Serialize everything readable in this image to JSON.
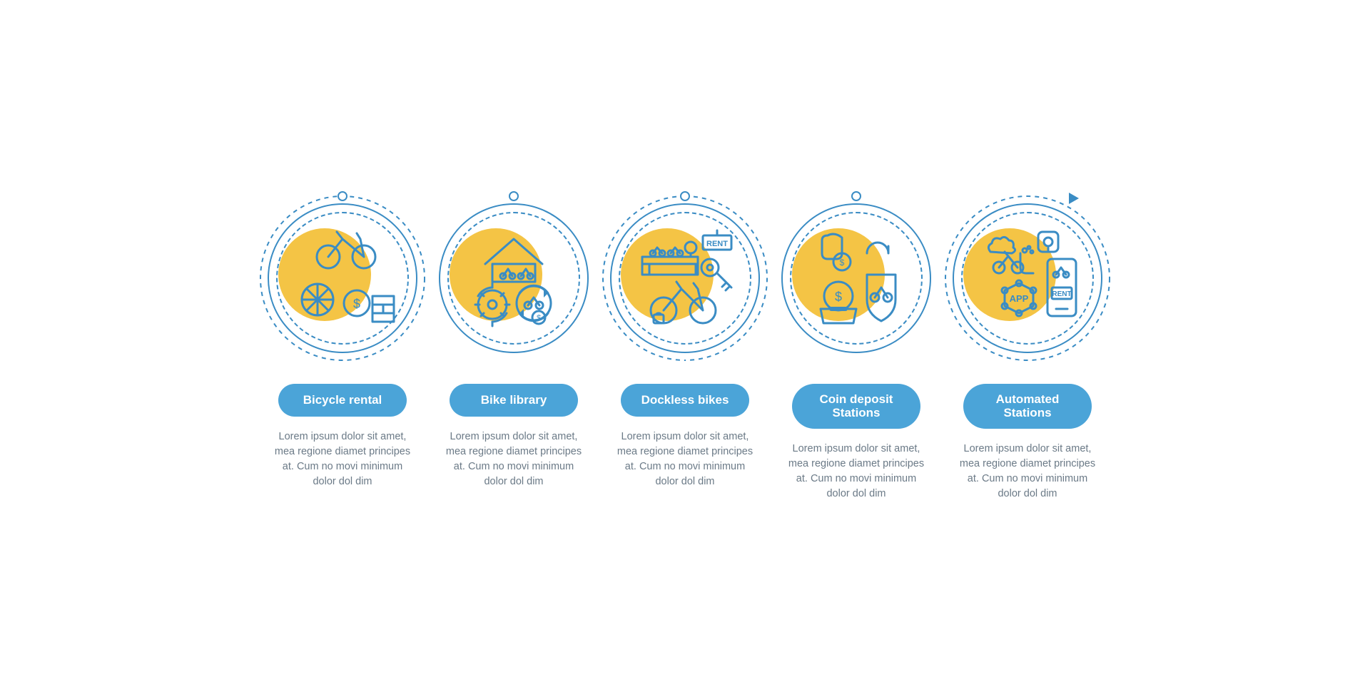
{
  "colors": {
    "stroke": "#3a8cc4",
    "pill_bg": "#4ba4d8",
    "pill_text": "#ffffff",
    "accent": "#f4c445",
    "desc_text": "#6b7a87",
    "background": "#ffffff"
  },
  "style": {
    "item_width": 240,
    "outer_solid_diameter": 210,
    "outer_dashed_diameter": 230,
    "inner_dashed_diameter": 186,
    "accent_blob_diameter": 130,
    "desc_fontsize": 14.5,
    "pill_fontsize": 17,
    "pill_radius": 999,
    "stroke_width": 2.5,
    "dash_pattern": "6 6"
  },
  "shared_desc": "Lorem ipsum dolor sit amet, mea regione diamet principes at. Cum no movi minimum dolor dol dim",
  "items": [
    {
      "title": "Bicycle rental",
      "icon": "bicycle-rental",
      "outer_style": "dashed-top",
      "desc_key": "shared_desc"
    },
    {
      "title": "Bike library",
      "icon": "bike-library",
      "outer_style": "solid",
      "desc_key": "shared_desc"
    },
    {
      "title": "Dockless bikes",
      "icon": "dockless-bikes",
      "outer_style": "dashed-bottom",
      "desc_key": "shared_desc"
    },
    {
      "title": "Coin deposit\nStations",
      "icon": "coin-deposit",
      "outer_style": "solid",
      "desc_key": "shared_desc"
    },
    {
      "title": "Automated\nStations",
      "icon": "automated-stations",
      "outer_style": "dashed-arrow",
      "desc_key": "shared_desc"
    }
  ]
}
